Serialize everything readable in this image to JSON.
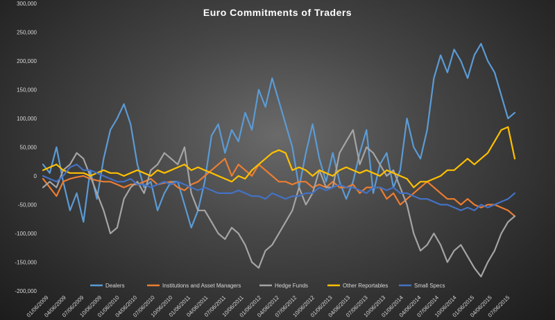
{
  "chart_data": {
    "type": "line",
    "title": "Euro Commitments  of Traders",
    "xlabel": "",
    "ylabel": "",
    "ylim": [
      -200000,
      300000
    ],
    "y_ticks": [
      300000,
      250000,
      200000,
      150000,
      100000,
      50000,
      0,
      -50000,
      -100000,
      -150000,
      -200000
    ],
    "y_tick_labels": [
      "300,000",
      "250,000",
      "200,000",
      "150,000",
      "100,000",
      "50,000",
      "0",
      "-50,000",
      "-100,000",
      "-150,000",
      "-200,000"
    ],
    "x_tick_labels": [
      "01/06/2009",
      "04/06/2009",
      "07/06/2009",
      "10/06/2009",
      "01/06/2010",
      "04/06/2010",
      "07/06/2010",
      "10/06/2010",
      "01/06/2011",
      "04/06/2011",
      "07/06/2011",
      "10/06/2011",
      "01/06/2012",
      "04/06/2012",
      "07/06/2012",
      "10/06/2012",
      "01/06/2013",
      "04/06/2013",
      "07/06/2013",
      "10/06/2013",
      "01/06/2014",
      "04/06/2014",
      "07/06/2014",
      "10/06/2014",
      "01/06/2015",
      "04/06/2015",
      "07/06/2015"
    ],
    "legend_position": "bottom",
    "grid": false,
    "series": [
      {
        "name": "Dealers",
        "color": "#5b9bd5",
        "values": [
          20000,
          5000,
          50000,
          -10000,
          -60000,
          -30000,
          -80000,
          10000,
          -40000,
          30000,
          80000,
          100000,
          125000,
          90000,
          20000,
          -20000,
          -10000,
          -60000,
          -30000,
          -10000,
          -10000,
          -50000,
          -90000,
          -60000,
          -10000,
          70000,
          90000,
          40000,
          80000,
          60000,
          110000,
          80000,
          150000,
          120000,
          170000,
          130000,
          90000,
          50000,
          -20000,
          40000,
          90000,
          30000,
          -10000,
          40000,
          -10000,
          -40000,
          -10000,
          40000,
          80000,
          -30000,
          20000,
          40000,
          -20000,
          10000,
          100000,
          50000,
          30000,
          80000,
          170000,
          210000,
          180000,
          220000,
          200000,
          170000,
          210000,
          230000,
          200000,
          180000,
          140000,
          100000,
          110000
        ]
      },
      {
        "name": "Institutions and Asset Managers",
        "color": "#ed7d31",
        "values": [
          -5000,
          -20000,
          -35000,
          -10000,
          -5000,
          -2000,
          0,
          -5000,
          -8000,
          -10000,
          -10000,
          -15000,
          -20000,
          -15000,
          -15000,
          -10000,
          -5000,
          -15000,
          -12000,
          -10000,
          -20000,
          -25000,
          -15000,
          -10000,
          0,
          10000,
          20000,
          30000,
          0,
          20000,
          10000,
          0,
          20000,
          10000,
          0,
          -10000,
          -10000,
          -15000,
          -10000,
          -10000,
          -20000,
          -15000,
          -20000,
          -10000,
          -20000,
          -20000,
          -15000,
          -30000,
          -20000,
          -20000,
          -20000,
          -40000,
          -30000,
          -50000,
          -40000,
          -30000,
          -20000,
          -10000,
          -20000,
          -30000,
          -40000,
          -40000,
          -50000,
          -40000,
          -50000,
          -55000,
          -50000,
          -50000,
          -55000,
          -60000,
          -70000
        ]
      },
      {
        "name": "Hedge Funds",
        "color": "#a5a5a5",
        "values": [
          -20000,
          -10000,
          -20000,
          10000,
          20000,
          40000,
          30000,
          0,
          -30000,
          -60000,
          -100000,
          -90000,
          -40000,
          -20000,
          -10000,
          -30000,
          10000,
          20000,
          40000,
          30000,
          20000,
          50000,
          -30000,
          -60000,
          -60000,
          -80000,
          -100000,
          -110000,
          -90000,
          -100000,
          -120000,
          -150000,
          -160000,
          -130000,
          -120000,
          -100000,
          -80000,
          -60000,
          -20000,
          -50000,
          -30000,
          10000,
          -20000,
          -20000,
          40000,
          60000,
          80000,
          20000,
          50000,
          40000,
          20000,
          0,
          10000,
          -20000,
          -50000,
          -100000,
          -130000,
          -120000,
          -100000,
          -120000,
          -150000,
          -130000,
          -120000,
          -140000,
          -160000,
          -175000,
          -150000,
          -130000,
          -100000,
          -80000,
          -70000
        ]
      },
      {
        "name": "Other Reportables",
        "color": "#ffc000",
        "values": [
          10000,
          15000,
          20000,
          10000,
          5000,
          5000,
          5000,
          0,
          5000,
          10000,
          5000,
          5000,
          0,
          5000,
          10000,
          5000,
          0,
          10000,
          5000,
          10000,
          15000,
          20000,
          10000,
          15000,
          10000,
          5000,
          0,
          -5000,
          -10000,
          0,
          -5000,
          10000,
          20000,
          30000,
          40000,
          45000,
          40000,
          10000,
          15000,
          10000,
          0,
          10000,
          5000,
          0,
          10000,
          15000,
          10000,
          5000,
          10000,
          5000,
          0,
          10000,
          5000,
          0,
          -5000,
          -20000,
          -10000,
          -10000,
          -5000,
          0,
          10000,
          10000,
          20000,
          30000,
          20000,
          30000,
          40000,
          60000,
          80000,
          85000,
          30000
        ]
      },
      {
        "name": "Small Specs",
        "color": "#4472c4",
        "values": [
          0,
          -5000,
          -10000,
          0,
          15000,
          20000,
          10000,
          10000,
          5000,
          0,
          -5000,
          -10000,
          -10000,
          -5000,
          -15000,
          -15000,
          -20000,
          -15000,
          -10000,
          -15000,
          -10000,
          -15000,
          -20000,
          -25000,
          -20000,
          -25000,
          -30000,
          -30000,
          -30000,
          -25000,
          -30000,
          -35000,
          -35000,
          -40000,
          -30000,
          -35000,
          -40000,
          -35000,
          -35000,
          -30000,
          -30000,
          -20000,
          -25000,
          -20000,
          -15000,
          -20000,
          -20000,
          -25000,
          -30000,
          -20000,
          -20000,
          -25000,
          -20000,
          -30000,
          -30000,
          -35000,
          -40000,
          -40000,
          -45000,
          -50000,
          -50000,
          -55000,
          -60000,
          -55000,
          -60000,
          -50000,
          -55000,
          -50000,
          -45000,
          -40000,
          -30000
        ]
      }
    ]
  }
}
